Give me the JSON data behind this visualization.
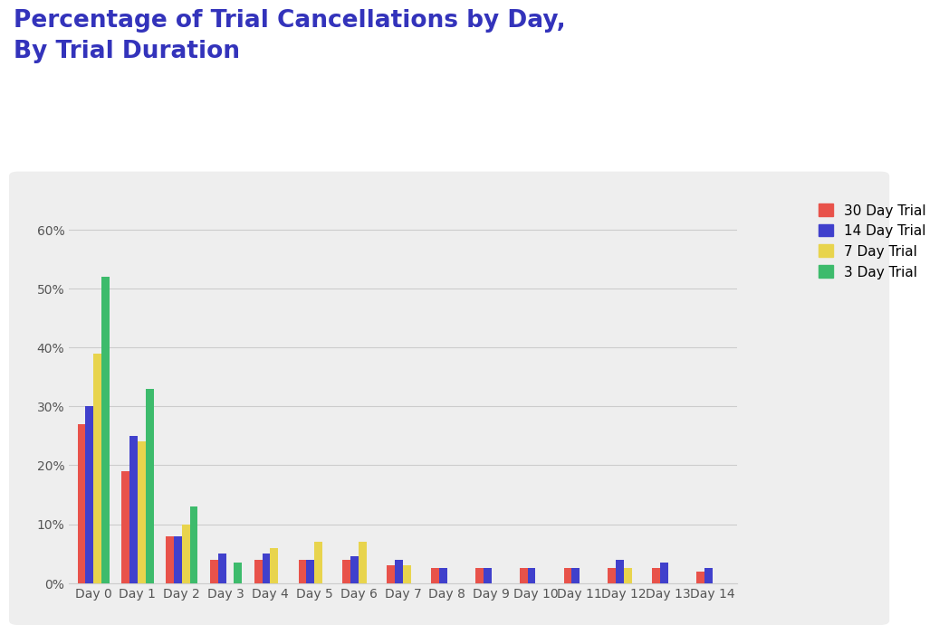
{
  "title": "Percentage of Trial Cancellations by Day,\nBy Trial Duration",
  "title_color": "#3333bb",
  "title_fontsize": 19,
  "outer_bg_color": "#ffffff",
  "chart_bg_color": "#eeeeee",
  "categories": [
    "Day 0",
    "Day 1",
    "Day 2",
    "Day 3",
    "Day 4",
    "Day 5",
    "Day 6",
    "Day 7",
    "Day 8",
    "Day 9",
    "Day 10",
    "Day 11",
    "Day 12",
    "Day 13",
    "Day 14"
  ],
  "series": {
    "30 Day Trial": {
      "color": "#e8524a",
      "values": [
        27,
        19,
        8,
        4,
        4,
        4,
        4,
        3,
        2.5,
        2.5,
        2.5,
        2.5,
        2.5,
        2.5,
        2
      ]
    },
    "14 Day Trial": {
      "color": "#4040cc",
      "values": [
        30,
        25,
        8,
        5,
        5,
        4,
        4.5,
        4,
        2.5,
        2.5,
        2.5,
        2.5,
        4,
        3.5,
        2.5
      ]
    },
    "7 Day Trial": {
      "color": "#e8d44d",
      "values": [
        39,
        24,
        10,
        0,
        6,
        7,
        7,
        3,
        0,
        0,
        0,
        0,
        2.5,
        0,
        0
      ]
    },
    "3 Day Trial": {
      "color": "#3dbb6c",
      "values": [
        52,
        33,
        13,
        3.5,
        0,
        0,
        0,
        0,
        0,
        0,
        0,
        0,
        0,
        0,
        0
      ]
    }
  },
  "ylim": [
    0,
    65
  ],
  "yticks": [
    0,
    10,
    20,
    30,
    40,
    50,
    60
  ],
  "ytick_labels": [
    "0%",
    "10%",
    "20%",
    "30%",
    "40%",
    "50%",
    "60%"
  ],
  "legend_order": [
    "30 Day Trial",
    "14 Day Trial",
    "7 Day Trial",
    "3 Day Trial"
  ],
  "legend_fontsize": 11,
  "tick_fontsize": 10,
  "bar_width": 0.18,
  "grid_color": "#cccccc",
  "axis_label_color": "#555555"
}
